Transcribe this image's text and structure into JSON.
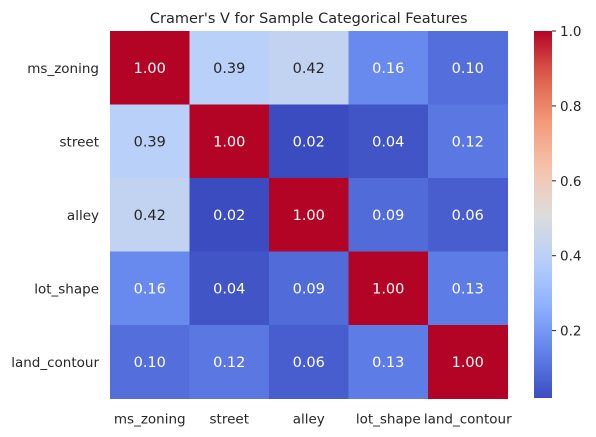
{
  "chart_data": {
    "type": "heatmap",
    "title": "Cramer's V for Sample Categorical Features",
    "xlabel": "",
    "ylabel": "",
    "x_categories": [
      "ms_zoning",
      "street",
      "alley",
      "lot_shape",
      "land_contour"
    ],
    "y_categories": [
      "ms_zoning",
      "street",
      "alley",
      "lot_shape",
      "land_contour"
    ],
    "values": [
      [
        1.0,
        0.39,
        0.42,
        0.16,
        0.1
      ],
      [
        0.39,
        1.0,
        0.02,
        0.04,
        0.12
      ],
      [
        0.42,
        0.02,
        1.0,
        0.09,
        0.06
      ],
      [
        0.16,
        0.04,
        0.09,
        1.0,
        0.13
      ],
      [
        0.1,
        0.12,
        0.06,
        0.13,
        1.0
      ]
    ],
    "annotation_format": "0.00",
    "colormap": "coolwarm",
    "colorbar": {
      "vmin": 0.02,
      "vmax": 1.0,
      "ticks": [
        0.2,
        0.4,
        0.6,
        0.8,
        1.0
      ],
      "tick_labels": [
        "0.2",
        "0.4",
        "0.6",
        "0.8",
        "1.0"
      ]
    },
    "grid": false,
    "legend": "colorbar-right"
  }
}
